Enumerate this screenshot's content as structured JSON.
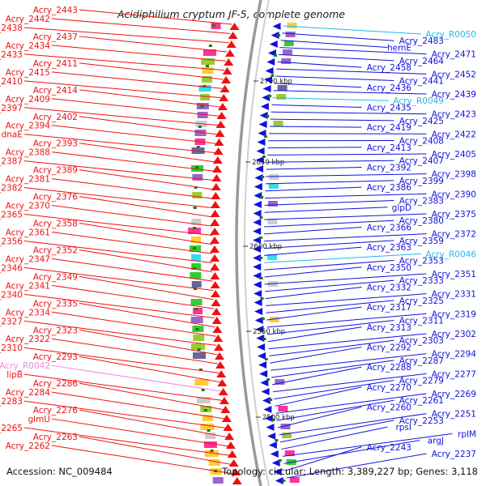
{
  "title": "Acidiphilium cryptum JF-5, complete genome",
  "footer": {
    "accession": "Accession: NC_009484",
    "stats": "Topology: circular; Length: 3,389,227 bp; Genes: 3,118"
  },
  "colors": {
    "forward": "#ee1111",
    "reverse": "#1111dd",
    "rna_reverse": "#22b8e8",
    "rna_forward": "#ee88dd",
    "backbone": "#9a9a9a",
    "tick": "#1a7a1a"
  },
  "scale_marks": [
    "2700 kbp",
    "2650 kbp",
    "2600 kbp",
    "2550 kbp",
    "2500 kbp"
  ],
  "left_labels": [
    "Acry_2443",
    "Acry_2442",
    "Acry_2438",
    "Acry_2437",
    "Acry_2434",
    "Acry_2433",
    "Acry_2411",
    "Acry_2415",
    "Acry_2410",
    "Acry_2414",
    "Acry_2409",
    "Acry_2397",
    "Acry_2402",
    "Acry_2394",
    "dnaE",
    "Acry_2393",
    "Acry_2388",
    "Acry_2387",
    "Acry_2389",
    "Acry_2381",
    "Acry_2382",
    "Acry_2376",
    "Acry_2370",
    "Acry_2365",
    "Acry_2358",
    "Acry_2361",
    "Acry_2356",
    "Acry_2352",
    "Acry_2347",
    "Acry_2346",
    "Acry_2349",
    "Acry_2341",
    "Acry_2340",
    "Acry_2335",
    "Acry_2334",
    "Acry_2327",
    "Acry_2323",
    "Acry_2322",
    "Acry_2310",
    "Acry_2293",
    "Acry_R0042",
    "lipB",
    "Acry_2286",
    "Acry_2284",
    "Acry_2283",
    "Acry_2276",
    "glmU",
    "Acry_2265",
    "Acry_2263",
    "Acry_2262"
  ],
  "right_labels": [
    "Acry_R0050",
    "Acry_2483",
    "hemE",
    "Acry_2471",
    "Acry_2464",
    "Acry_2458",
    "Acry_2452",
    "Acry_2441",
    "Acry_2436",
    "Acry_2439",
    "Acry_R0049",
    "Acry_2435",
    "Acry_2423",
    "Acry_2425",
    "Acry_2419",
    "Acry_2422",
    "Acry_2408",
    "Acry_2413",
    "Acry_2405",
    "Acry_2407",
    "Acry_2392",
    "Acry_2398",
    "Acry_2399",
    "Acry_2386",
    "Acry_2390",
    "Acry_2383",
    "glpD",
    "Acry_2375",
    "Acry_2380",
    "Acry_2366",
    "Acry_2372",
    "Acry_2359",
    "Acry_2363",
    "Acry_R0046",
    "Acry_2353",
    "Acry_2350",
    "Acry_2351",
    "Acry_2333",
    "Acry_2332",
    "Acry_2331",
    "Acry_2325",
    "Acry_2317",
    "Acry_2319",
    "Acry_2311",
    "Acry_2313",
    "Acry_2302",
    "Acry_2303",
    "Acry_2292",
    "Acry_2294",
    "Acry_2287",
    "Acry_2288",
    "Acry_2277",
    "Acry_2279",
    "Acry_2270",
    "Acry_2269",
    "Acry_2261",
    "Acry_2260",
    "Acry_2251",
    "Acry_2253",
    "rpsI",
    "rplM",
    "argJ",
    "Acry_2243",
    "Acry_2237"
  ]
}
